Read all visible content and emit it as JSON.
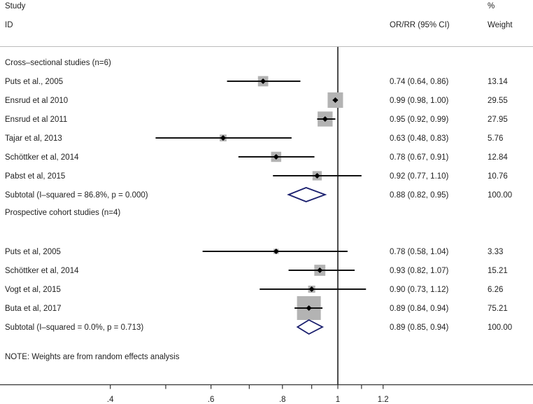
{
  "chart_data": {
    "type": "forest",
    "x_scale": "log",
    "xlim": [
      0.256,
      2.19
    ],
    "reference_line": 1,
    "x_ticks": [
      0.4,
      0.5,
      0.6,
      0.7,
      0.8,
      0.9,
      1,
      1.1,
      1.2
    ],
    "x_tick_labels": [
      ".4",
      "",
      ".6",
      "",
      ".8",
      "",
      "1",
      "",
      "1.2"
    ],
    "headers": {
      "study_line1": "Study",
      "study_line2": "ID",
      "effect": "OR/RR (95% CI)",
      "weight_line1": "%",
      "weight_line2": "Weight"
    },
    "colors": {
      "box": "#b3b3b3",
      "diamond": "#1a1f6e",
      "line": "#111111"
    },
    "groups": [
      {
        "label": "Cross–sectional studies (n=6)",
        "studies": [
          {
            "id": "Puts et al., 2005",
            "est": 0.74,
            "lo": 0.64,
            "hi": 0.86,
            "ci_text": "0.74 (0.64, 0.86)",
            "weight": "13.14"
          },
          {
            "id": "Ensrud et al 2010",
            "est": 0.99,
            "lo": 0.98,
            "hi": 1.0,
            "ci_text": "0.99 (0.98, 1.00)",
            "weight": "29.55"
          },
          {
            "id": "Ensrud et al 2011",
            "est": 0.95,
            "lo": 0.92,
            "hi": 0.99,
            "ci_text": "0.95 (0.92, 0.99)",
            "weight": "27.95"
          },
          {
            "id": "Tajar et al, 2013",
            "est": 0.63,
            "lo": 0.48,
            "hi": 0.83,
            "ci_text": "0.63 (0.48, 0.83)",
            "weight": "5.76"
          },
          {
            "id": "Schöttker et al, 2014",
            "est": 0.78,
            "lo": 0.67,
            "hi": 0.91,
            "ci_text": "0.78 (0.67, 0.91)",
            "weight": "12.84"
          },
          {
            "id": "Pabst et al, 2015",
            "est": 0.92,
            "lo": 0.77,
            "hi": 1.1,
            "ci_text": "0.92 (0.77, 1.10)",
            "weight": "10.76"
          }
        ],
        "subtotal": {
          "label": "Subtotal  (I–squared = 86.8%, p = 0.000)",
          "est": 0.88,
          "lo": 0.82,
          "hi": 0.95,
          "ci_text": "0.88 (0.82, 0.95)",
          "weight": "100.00"
        }
      },
      {
        "label": "Prospective cohort studies (n=4)",
        "studies": [
          {
            "id": "Puts et al, 2005",
            "est": 0.78,
            "lo": 0.58,
            "hi": 1.04,
            "ci_text": "0.78 (0.58, 1.04)",
            "weight": "3.33"
          },
          {
            "id": "Schöttker et al, 2014",
            "est": 0.93,
            "lo": 0.82,
            "hi": 1.07,
            "ci_text": "0.93 (0.82, 1.07)",
            "weight": "15.21"
          },
          {
            "id": "Vogt et al, 2015",
            "est": 0.9,
            "lo": 0.73,
            "hi": 1.12,
            "ci_text": "0.90 (0.73, 1.12)",
            "weight": "6.26"
          },
          {
            "id": "Buta et al, 2017",
            "est": 0.89,
            "lo": 0.84,
            "hi": 0.94,
            "ci_text": "0.89 (0.84, 0.94)",
            "weight": "75.21"
          }
        ],
        "subtotal": {
          "label": "Subtotal  (I–squared = 0.0%, p = 0.713)",
          "est": 0.89,
          "lo": 0.85,
          "hi": 0.94,
          "ci_text": "0.89 (0.85, 0.94)",
          "weight": "100.00"
        }
      }
    ],
    "note": "NOTE: Weights are from random effects analysis"
  }
}
